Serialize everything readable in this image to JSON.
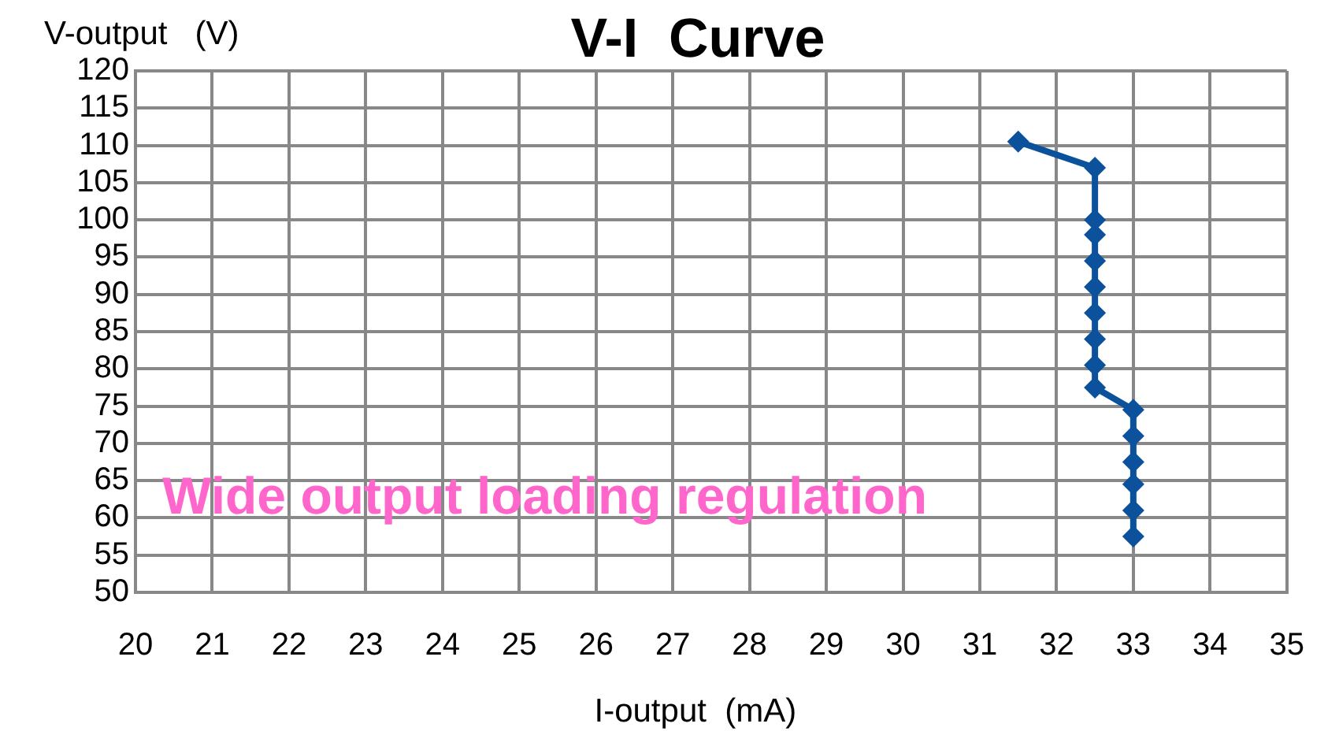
{
  "chart_data": {
    "type": "line",
    "title": "V-I  Curve",
    "xlabel": "I-output  (mA)",
    "ylabel": "V-output   (V)",
    "annotations": [
      "Wide output loading regulation"
    ],
    "x": [
      31.5,
      32.5,
      32.5,
      32.5,
      32.5,
      32.5,
      32.5,
      32.5,
      32.5,
      32.5,
      33,
      33,
      33,
      33,
      33,
      33
    ],
    "series": [
      {
        "color": "#0b519c",
        "values": [
          110.5,
          107,
          100,
          98,
          94.5,
          91,
          87.5,
          84,
          80.5,
          77.5,
          74.5,
          71,
          67.5,
          64.5,
          61,
          57.5
        ]
      }
    ],
    "xlim": [
      20,
      35
    ],
    "xticks": [
      20,
      21,
      22,
      23,
      24,
      25,
      26,
      27,
      28,
      29,
      30,
      31,
      32,
      33,
      34,
      35
    ],
    "ylim": [
      50,
      120
    ],
    "yticks": [
      50,
      55,
      60,
      65,
      70,
      75,
      80,
      85,
      90,
      95,
      100,
      105,
      110,
      115,
      120
    ],
    "grid": true,
    "legend": false,
    "marker": "diamond",
    "line_style": "solid"
  }
}
